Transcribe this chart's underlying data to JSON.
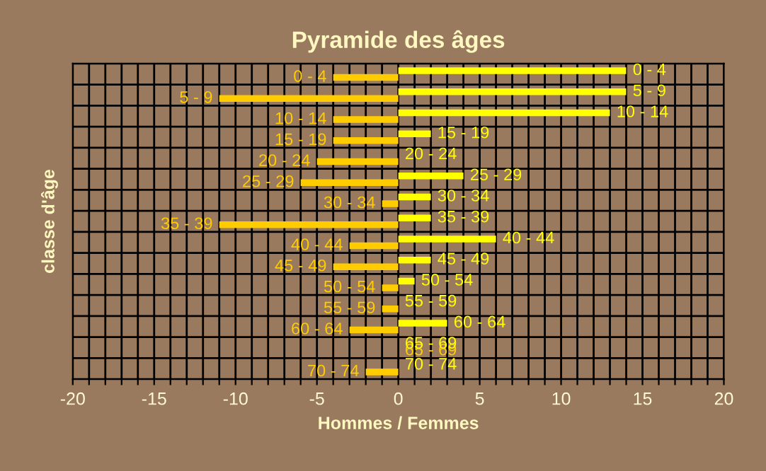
{
  "chart_data": {
    "type": "bar",
    "orientation": "horizontal",
    "title": "Pyramide des âges",
    "xlabel": "Hommes / Femmes",
    "ylabel": "classe d'âge",
    "categories": [
      "0 - 4",
      "5 - 9",
      "10 - 14",
      "15 - 19",
      "20 - 24",
      "25 - 29",
      "30 - 34",
      "35 - 39",
      "40 - 44",
      "45 - 49",
      "50 - 54",
      "55 - 59",
      "60 - 64",
      "65 - 69",
      "70 - 74"
    ],
    "series": [
      {
        "color": "#ffcc00",
        "values": [
          -4,
          -11,
          -4,
          -4,
          -5,
          -6,
          -1,
          -11,
          -3,
          -4,
          -1,
          -1,
          -3,
          0,
          -2
        ]
      },
      {
        "color": "#ffff00",
        "values": [
          14,
          14,
          13,
          2,
          0,
          4,
          2,
          2,
          6,
          2,
          1,
          0,
          3,
          0,
          0
        ]
      }
    ],
    "xlim": [
      -20,
      20
    ],
    "xticks": [
      -20,
      {
        "value": -19,
        "label": null
      },
      {
        "value": -18,
        "label": null
      },
      {
        "value": -17,
        "label": null
      },
      {
        "value": -16,
        "label": null
      },
      -15,
      {
        "value": -14,
        "label": null
      },
      {
        "value": -13,
        "label": null
      },
      {
        "value": -12,
        "label": null
      },
      {
        "value": -11,
        "label": null
      },
      -10,
      {
        "value": -9,
        "label": null
      },
      {
        "value": -8,
        "label": null
      },
      {
        "value": -7,
        "label": null
      },
      {
        "value": -6,
        "label": null
      },
      -5,
      {
        "value": -4,
        "label": null
      },
      {
        "value": -3,
        "label": null
      },
      {
        "value": -2,
        "label": null
      },
      {
        "value": -1,
        "label": null
      },
      0,
      {
        "value": 1,
        "label": null
      },
      {
        "value": 2,
        "label": null
      },
      {
        "value": 3,
        "label": null
      },
      {
        "value": 4,
        "label": null
      },
      5,
      {
        "value": 6,
        "label": null
      },
      {
        "value": 7,
        "label": null
      },
      {
        "value": 8,
        "label": null
      },
      {
        "value": 9,
        "label": null
      },
      10,
      {
        "value": 11,
        "label": null
      },
      {
        "value": 12,
        "label": null
      },
      {
        "value": 13,
        "label": null
      },
      {
        "value": 14,
        "label": null
      },
      15,
      {
        "value": 16,
        "label": null
      },
      {
        "value": 17,
        "label": null
      },
      {
        "value": 18,
        "label": null
      },
      {
        "value": 19,
        "label": null
      },
      20
    ],
    "grid": true,
    "tick_labels": "x"
  }
}
